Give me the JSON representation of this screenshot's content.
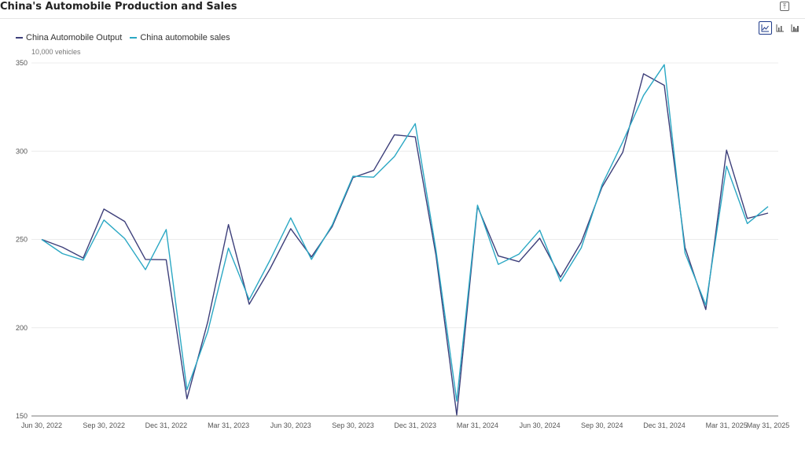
{
  "header": {
    "title": "China's Automobile Production and Sales",
    "export_icon": "export-icon"
  },
  "toolbar": {
    "buttons": [
      {
        "icon": "line-chart-icon",
        "active": true
      },
      {
        "icon": "bar-chart-icon",
        "active": false
      },
      {
        "icon": "column-chart-icon",
        "active": false
      }
    ]
  },
  "legend": [
    {
      "label": "China Automobile Output",
      "color": "#3d3f7a"
    },
    {
      "label": "China automobile sales",
      "color": "#2ba8c4"
    }
  ],
  "unit_label": "10,000 vehicles",
  "chart_data": {
    "type": "line",
    "title": "China's Automobile Production and Sales",
    "ylabel": "10,000 vehicles",
    "ylim": [
      150,
      350
    ],
    "y_ticks": [
      150,
      200,
      250,
      300,
      350
    ],
    "grid": true,
    "legend_position": "top-left",
    "x": [
      "2022-06",
      "2022-07",
      "2022-08",
      "2022-09",
      "2022-10",
      "2022-11",
      "2022-12",
      "2023-01",
      "2023-02",
      "2023-03",
      "2023-04",
      "2023-05",
      "2023-06",
      "2023-07",
      "2023-08",
      "2023-09",
      "2023-10",
      "2023-11",
      "2023-12",
      "2024-01",
      "2024-02",
      "2024-03",
      "2024-04",
      "2024-05",
      "2024-06",
      "2024-07",
      "2024-08",
      "2024-09",
      "2024-10",
      "2024-11",
      "2024-12",
      "2025-01",
      "2025-02",
      "2025-03",
      "2025-04",
      "2025-05"
    ],
    "x_tick_labels": [
      {
        "index": 0,
        "label": "Jun 30, 2022"
      },
      {
        "index": 3,
        "label": "Sep 30, 2022"
      },
      {
        "index": 6,
        "label": "Dec 31, 2022"
      },
      {
        "index": 9,
        "label": "Mar 31, 2023"
      },
      {
        "index": 12,
        "label": "Jun 30, 2023"
      },
      {
        "index": 15,
        "label": "Sep 30, 2023"
      },
      {
        "index": 18,
        "label": "Dec 31, 2023"
      },
      {
        "index": 21,
        "label": "Mar 31, 2024"
      },
      {
        "index": 24,
        "label": "Jun 30, 2024"
      },
      {
        "index": 27,
        "label": "Sep 30, 2024"
      },
      {
        "index": 30,
        "label": "Dec 31, 2024"
      },
      {
        "index": 33,
        "label": "Mar 31, 2025"
      },
      {
        "index": 35,
        "label": "May 31, 2025"
      }
    ],
    "series": [
      {
        "name": "China Automobile Output",
        "color": "#3d3f7a",
        "values": [
          250,
          245.6,
          239.5,
          267.2,
          260.2,
          238.7,
          238.5,
          159.7,
          203.2,
          258.4,
          213.3,
          233.3,
          256.1,
          240.1,
          257.3,
          285.0,
          289.1,
          309.3,
          308.1,
          240.9,
          150.6,
          268.7,
          240.7,
          237.4,
          250.7,
          228.6,
          248.5,
          279.6,
          299.4,
          343.8,
          337.3,
          245.4,
          210.3,
          300.6,
          261.9,
          264.9
        ]
      },
      {
        "name": "China automobile sales",
        "color": "#2ba8c4",
        "values": [
          250,
          242.0,
          238.3,
          261.0,
          250.5,
          232.9,
          255.6,
          164.9,
          197.6,
          245.1,
          215.9,
          238.2,
          262.2,
          238.7,
          258.2,
          285.8,
          285.3,
          297.0,
          315.6,
          243.9,
          158.4,
          269.4,
          235.9,
          241.7,
          255.2,
          226.2,
          245.3,
          280.9,
          305.3,
          331.6,
          349.0,
          242.3,
          212.8,
          291.5,
          259.0,
          268.6
        ]
      }
    ]
  }
}
